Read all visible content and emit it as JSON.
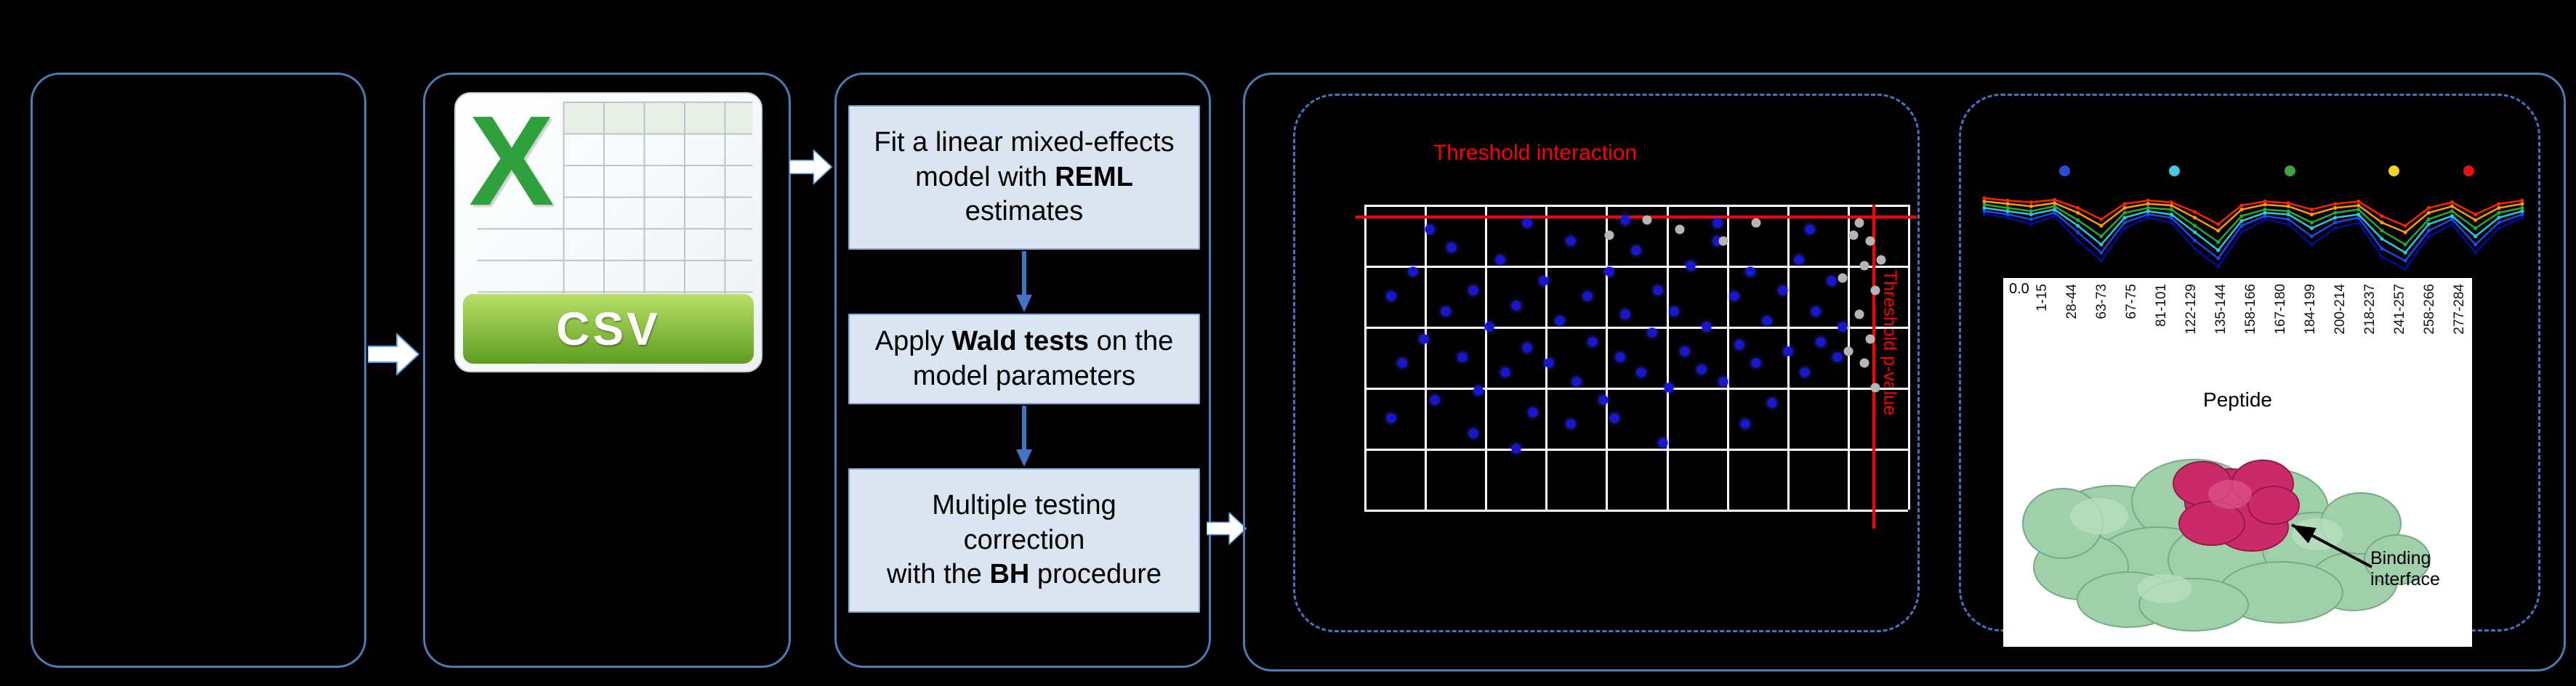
{
  "colors": {
    "background": "#000000",
    "panel_border": "#4a7cb5",
    "dashed_border": "#4472c4",
    "step_box_fill": "#dbe5f1",
    "threshold_red": "#ff0000",
    "scatter_blue": "#1717cf",
    "scatter_gray": "#b5b5b5",
    "csv_green": "#2fa13c"
  },
  "csv": {
    "x_letter": "X",
    "label": "CSV"
  },
  "steps": {
    "boxes": [
      {
        "pre": "Fit a linear mixed-effects model with ",
        "bold": "REML",
        "post": " estimates"
      },
      {
        "pre": "Apply ",
        "bold": "Wald tests",
        "post": " on the model parameters"
      },
      {
        "pre": "Multiple testing correction\nwith the ",
        "bold": "BH",
        "post": " procedure"
      }
    ]
  },
  "volcano": {
    "threshold_interaction_label": "Threshold interaction",
    "threshold_pvalue_label": "Threshold p-value",
    "grid": {
      "cols": 9,
      "rows": 5
    },
    "blue_points": [
      [
        5,
        30
      ],
      [
        7,
        52
      ],
      [
        9,
        22
      ],
      [
        11,
        44
      ],
      [
        13,
        64
      ],
      [
        15,
        35
      ],
      [
        16,
        14
      ],
      [
        18,
        50
      ],
      [
        20,
        28
      ],
      [
        21,
        61
      ],
      [
        23,
        40
      ],
      [
        25,
        18
      ],
      [
        26,
        55
      ],
      [
        28,
        33
      ],
      [
        30,
        47
      ],
      [
        31,
        68
      ],
      [
        33,
        25
      ],
      [
        34,
        52
      ],
      [
        36,
        38
      ],
      [
        38,
        12
      ],
      [
        39,
        58
      ],
      [
        41,
        30
      ],
      [
        42,
        45
      ],
      [
        44,
        64
      ],
      [
        45,
        22
      ],
      [
        47,
        50
      ],
      [
        48,
        36
      ],
      [
        50,
        15
      ],
      [
        51,
        55
      ],
      [
        53,
        42
      ],
      [
        54,
        28
      ],
      [
        56,
        60
      ],
      [
        57,
        35
      ],
      [
        59,
        48
      ],
      [
        60,
        20
      ],
      [
        62,
        54
      ],
      [
        63,
        40
      ],
      [
        65,
        12
      ],
      [
        66,
        58
      ],
      [
        68,
        30
      ],
      [
        69,
        46
      ],
      [
        71,
        22
      ],
      [
        72,
        52
      ],
      [
        74,
        38
      ],
      [
        75,
        65
      ],
      [
        77,
        28
      ],
      [
        78,
        48
      ],
      [
        80,
        18
      ],
      [
        81,
        55
      ],
      [
        83,
        35
      ],
      [
        84,
        45
      ],
      [
        86,
        25
      ],
      [
        87,
        50
      ],
      [
        5,
        70
      ],
      [
        20,
        75
      ],
      [
        38,
        72
      ],
      [
        55,
        78
      ],
      [
        70,
        72
      ],
      [
        12,
        8
      ],
      [
        30,
        6
      ],
      [
        48,
        5
      ],
      [
        65,
        6
      ],
      [
        82,
        8
      ],
      [
        88,
        40
      ],
      [
        46,
        70
      ],
      [
        28,
        80
      ]
    ],
    "gray_points": [
      [
        91,
        6
      ],
      [
        93,
        12
      ],
      [
        92,
        20
      ],
      [
        94,
        28
      ],
      [
        91,
        36
      ],
      [
        93,
        44
      ],
      [
        95,
        18
      ],
      [
        92,
        52
      ],
      [
        90,
        10
      ],
      [
        94,
        60
      ],
      [
        58,
        8
      ],
      [
        52,
        5
      ],
      [
        66,
        12
      ],
      [
        72,
        6
      ],
      [
        45,
        10
      ],
      [
        88,
        24
      ],
      [
        89,
        48
      ]
    ]
  },
  "peptide": {
    "legend_colors": [
      "#2b4bdf",
      "#45c8e8",
      "#3aa83c",
      "#f2d321",
      "#e81212"
    ],
    "y_tick": "0.0",
    "x_ticks": [
      "1-15",
      "28-44",
      "63-73",
      "67-75",
      "81-101",
      "122-129",
      "135-144",
      "158-166",
      "167-180",
      "184-199",
      "200-214",
      "218-237",
      "241-257",
      "258-266",
      "277-284"
    ],
    "x_label": "Peptide",
    "annotation": "Binding interface",
    "series": [
      {
        "name": "navy",
        "color": "#000d99",
        "values": [
          72,
          68,
          60,
          70,
          40,
          15,
          55,
          68,
          62,
          30,
          8,
          50,
          66,
          60,
          35,
          55,
          62,
          20,
          5,
          45,
          60,
          25,
          55,
          68
        ]
      },
      {
        "name": "blue",
        "color": "#2244ee",
        "values": [
          76,
          72,
          66,
          74,
          50,
          25,
          62,
          72,
          68,
          40,
          18,
          58,
          70,
          66,
          45,
          62,
          68,
          30,
          15,
          52,
          66,
          35,
          62,
          72
        ]
      },
      {
        "name": "cyan",
        "color": "#22ccdd",
        "values": [
          80,
          76,
          72,
          78,
          58,
          35,
          68,
          76,
          72,
          50,
          28,
          64,
          74,
          72,
          55,
          68,
          72,
          42,
          25,
          60,
          70,
          45,
          68,
          76
        ]
      },
      {
        "name": "green",
        "color": "#22aa33",
        "values": [
          84,
          80,
          76,
          82,
          65,
          45,
          74,
          80,
          78,
          58,
          38,
          70,
          78,
          76,
          62,
          74,
          78,
          52,
          35,
          66,
          76,
          55,
          74,
          80
        ]
      },
      {
        "name": "orange",
        "color": "#ff9900",
        "values": [
          88,
          85,
          82,
          86,
          74,
          58,
          80,
          85,
          83,
          68,
          52,
          78,
          84,
          82,
          72,
          80,
          83,
          62,
          50,
          74,
          82,
          65,
          80,
          85
        ]
      },
      {
        "name": "red",
        "color": "#ff2200",
        "values": [
          92,
          89,
          87,
          90,
          80,
          66,
          85,
          89,
          87,
          75,
          60,
          83,
          88,
          86,
          78,
          85,
          88,
          70,
          58,
          80,
          87,
          72,
          85,
          89
        ]
      }
    ]
  }
}
